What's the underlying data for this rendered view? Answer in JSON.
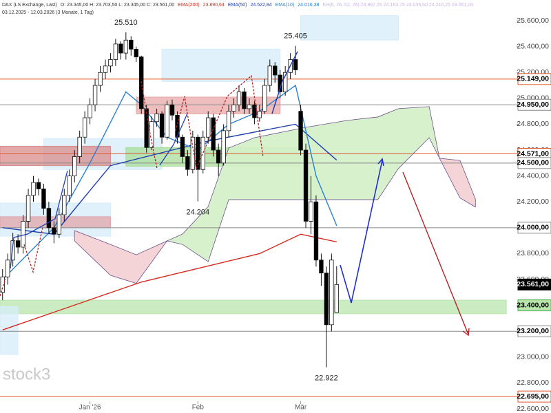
{
  "chart_data": {
    "type": "candlestick",
    "title": "DAX (LS Exchange, Last)",
    "ohlc_label": "O: 23.345,00  H: 23.703,50  L: 23.345,00  C: 23.561,00",
    "subtitle": "03.12.2025 - 12.03.2026 (3 Monate, 1 Tag)",
    "faint_header": "KH(9, 26, 52, 26)  23.967,25  24.163,75  24.035,50  24.216,25  23.561,00",
    "watermark": "stock3",
    "xlim": [
      -0.5,
      100
    ],
    "ylim": [
      22568,
      25760
    ],
    "xticks": [
      {
        "value": 17,
        "label": "Jan '26"
      },
      {
        "value": 38,
        "label": "Feb"
      },
      {
        "value": 58,
        "label": "Mär"
      }
    ],
    "yticks": [
      {
        "value": 22600,
        "label": "22.600,00"
      },
      {
        "value": 22800,
        "label": "22.800,00"
      },
      {
        "value": 23000,
        "label": "23.000,00"
      },
      {
        "value": 23200,
        "label": "23.200,00"
      },
      {
        "value": 23400,
        "label": "23.400,00"
      },
      {
        "value": 23600,
        "label": "23.600,00"
      },
      {
        "value": 23800,
        "label": "23.800,00"
      },
      {
        "value": 24000,
        "label": "24.000,00"
      },
      {
        "value": 24200,
        "label": "24.200,00"
      },
      {
        "value": 24400,
        "label": "24.400,00"
      },
      {
        "value": 24600,
        "label": "24.600,00"
      },
      {
        "value": 24800,
        "label": "24.800,00"
      },
      {
        "value": 25000,
        "label": "25.000,00"
      },
      {
        "value": 25200,
        "label": "25.200,00"
      },
      {
        "value": 25400,
        "label": "25.400,00"
      },
      {
        "value": 25600,
        "label": "25.600,00"
      }
    ],
    "grid": false,
    "up_color": "#ffffff",
    "down_color": "#000000",
    "open": [
      23500,
      23620,
      23750,
      23900,
      23850,
      24050,
      24250,
      24350,
      24300,
      24150,
      24000,
      23950,
      24100,
      24250,
      24400,
      24550,
      24700,
      24850,
      24950,
      25100,
      25200,
      25250,
      25300,
      25420,
      25350,
      25450,
      25380,
      25320,
      24920,
      24620,
      24820,
      24880,
      24700,
      24950,
      24870,
      24700,
      24550,
      24450,
      24700,
      24450,
      24700,
      24850,
      24600,
      24500,
      24750,
      24900,
      24950,
      25050,
      24920,
      24950,
      24850,
      24900,
      25100,
      25250,
      25180,
      25050,
      25200,
      25300,
      24900,
      24600,
      24050,
      24200,
      23750,
      23650,
      23250,
      23345
    ],
    "high": [
      23680,
      23800,
      23960,
      23950,
      24100,
      24300,
      24400,
      24380,
      24340,
      24200,
      24050,
      24150,
      24300,
      24450,
      24600,
      24750,
      24900,
      25000,
      25150,
      25250,
      25300,
      25350,
      25460,
      25440,
      25510,
      25480,
      25400,
      25330,
      24950,
      24860,
      24920,
      24900,
      24980,
      24990,
      24900,
      24720,
      24600,
      24750,
      24720,
      24750,
      24900,
      24880,
      24650,
      24800,
      24950,
      25000,
      25100,
      25080,
      25000,
      24980,
      24950,
      25150,
      25300,
      25280,
      25220,
      25250,
      25350,
      25405,
      24950,
      24650,
      24400,
      24250,
      23800,
      23700,
      23800,
      23703.5
    ],
    "low": [
      23440,
      23560,
      23700,
      23800,
      23800,
      24000,
      24200,
      24250,
      24100,
      23950,
      23880,
      23920,
      24050,
      24200,
      24350,
      24500,
      24650,
      24800,
      24900,
      25050,
      25150,
      25200,
      25250,
      25300,
      25300,
      25330,
      25280,
      24880,
      24580,
      24600,
      24780,
      24650,
      24680,
      24830,
      24650,
      24500,
      24400,
      24420,
      24204,
      24420,
      24650,
      24550,
      24400,
      24480,
      24700,
      24850,
      24900,
      24880,
      24880,
      24800,
      24820,
      24880,
      25050,
      25120,
      25000,
      25020,
      25150,
      25180,
      24560,
      24000,
      23950,
      23700,
      23550,
      22922,
      23200,
      23345
    ],
    "close": [
      23620,
      23750,
      23900,
      23850,
      24050,
      24250,
      24350,
      24300,
      24150,
      24000,
      23950,
      24100,
      24250,
      24400,
      24550,
      24700,
      24850,
      24950,
      25100,
      25200,
      25250,
      25300,
      25420,
      25350,
      25450,
      25380,
      25320,
      24920,
      24620,
      24820,
      24880,
      24700,
      24950,
      24870,
      24700,
      24550,
      24450,
      24700,
      24450,
      24700,
      24850,
      24600,
      24500,
      24750,
      24900,
      24950,
      25050,
      24920,
      24950,
      24850,
      24900,
      25100,
      25250,
      25180,
      25050,
      25200,
      25300,
      25220,
      24600,
      24050,
      24200,
      23750,
      23650,
      23250,
      23750,
      23561
    ],
    "series": [
      {
        "name": "EMA(200)",
        "color": "#d62a1e",
        "last_label": "23.890,64",
        "x": [
          0,
          27,
          50,
          58,
          65
        ],
        "values": [
          23210,
          23580,
          23800,
          23950,
          23890.64
        ]
      },
      {
        "name": "EMA(50)",
        "color": "#1f3fb0",
        "last_label": "24.522,84",
        "x": [
          0,
          10,
          21,
          40,
          57,
          65
        ],
        "values": [
          24000,
          23950,
          24480,
          24670,
          24800,
          24522.84
        ]
      },
      {
        "name": "EMA(10)",
        "color": "#2a7fd0",
        "last_label": "24.016,38",
        "x": [
          0,
          10,
          17,
          24,
          27,
          32,
          38,
          44,
          50,
          57,
          61,
          65
        ],
        "values": [
          23600,
          24000,
          24500,
          25050,
          24950,
          24700,
          24600,
          24800,
          24900,
          25100,
          24400,
          24016.38
        ]
      }
    ],
    "clouds": [
      {
        "color": "#f3cfd3",
        "x": [
          14,
          21,
          26,
          32
        ],
        "upper": [
          23978,
          23871,
          23791,
          23898
        ],
        "lower": [
          23898,
          23632,
          23570,
          23898
        ]
      },
      {
        "color": "#d4f0c8",
        "x": [
          32,
          35,
          40,
          44,
          49,
          59,
          67,
          73,
          77,
          83,
          85
        ],
        "upper": [
          23898,
          23951,
          24164,
          24616,
          24696,
          24776,
          24829,
          24856,
          24920,
          24936,
          24537
        ],
        "lower": [
          23898,
          23871,
          23738,
          24217,
          24217,
          24217,
          24217,
          24217,
          24457,
          24696,
          24537
        ]
      },
      {
        "color": "#f3cfd3",
        "x": [
          85,
          89,
          92
        ],
        "upper": [
          24537,
          24520,
          24220
        ],
        "lower": [
          24537,
          24230,
          24160
        ]
      }
    ],
    "zones": [
      {
        "x": [
          58,
          77
        ],
        "y": [
          25450,
          25640
        ],
        "color": "#d6ecfa"
      },
      {
        "x": [
          31,
          54
        ],
        "y": [
          25130,
          25380
        ],
        "color": "#d6ecfa"
      },
      {
        "x": [
          26,
          54
        ],
        "y": [
          24880,
          25010
        ],
        "color": "#e8a8a8"
      },
      {
        "x": [
          8,
          31
        ],
        "y": [
          24450,
          24690
        ],
        "color": "#d6ecfa"
      },
      {
        "x": [
          -0.5,
          21
        ],
        "y": [
          24480,
          24630
        ],
        "color": "#d98c8c"
      },
      {
        "x": [
          24,
          58
        ],
        "y": [
          24475,
          24620
        ],
        "color": "#a9dc9a"
      },
      {
        "x": [
          -0.5,
          21
        ],
        "y": [
          23935,
          24190
        ],
        "color": "#d6ecfa"
      },
      {
        "x": [
          -0.5,
          21
        ],
        "y": [
          24000,
          24085
        ],
        "color": "#e0a4a8"
      },
      {
        "x": [
          -0.5,
          98
        ],
        "y": [
          23335,
          23440
        ],
        "color": "#b9e6ad"
      },
      {
        "x": [
          -0.5,
          3
        ],
        "y": [
          23020,
          23390
        ],
        "color": "#d6ecfa"
      }
    ],
    "levels": [
      {
        "value": 25149,
        "label": "25.149,00",
        "color": "#e0572a"
      },
      {
        "value": 24950,
        "label": "24.950,00",
        "color": "#888888"
      },
      {
        "value": 24571,
        "label": "24.571,00",
        "color": "#e0572a"
      },
      {
        "value": 24500,
        "label": "24.500,00",
        "color": "#888888"
      },
      {
        "value": 24000,
        "label": "24.000,00",
        "color": "#888888"
      },
      {
        "value": 23561,
        "label": "23.561,00",
        "color": "#000000",
        "line": false
      },
      {
        "value": 23400,
        "label": "23.400,00",
        "color": "#4caf50",
        "line": false
      },
      {
        "value": 23200,
        "label": "23.200,00",
        "color": "#888888"
      },
      {
        "value": 22695,
        "label": "22.695,00",
        "color": "#e0572a"
      }
    ],
    "annotations": [
      {
        "label": "25.510",
        "value": 25510,
        "x": 24,
        "side": "above"
      },
      {
        "label": "25.405",
        "value": 25405,
        "x": 57,
        "side": "above"
      },
      {
        "label": "24.204",
        "value": 24204,
        "x": 38,
        "side": "below"
      },
      {
        "label": "22.922",
        "value": 22922,
        "x": 63,
        "side": "below"
      }
    ]
  }
}
